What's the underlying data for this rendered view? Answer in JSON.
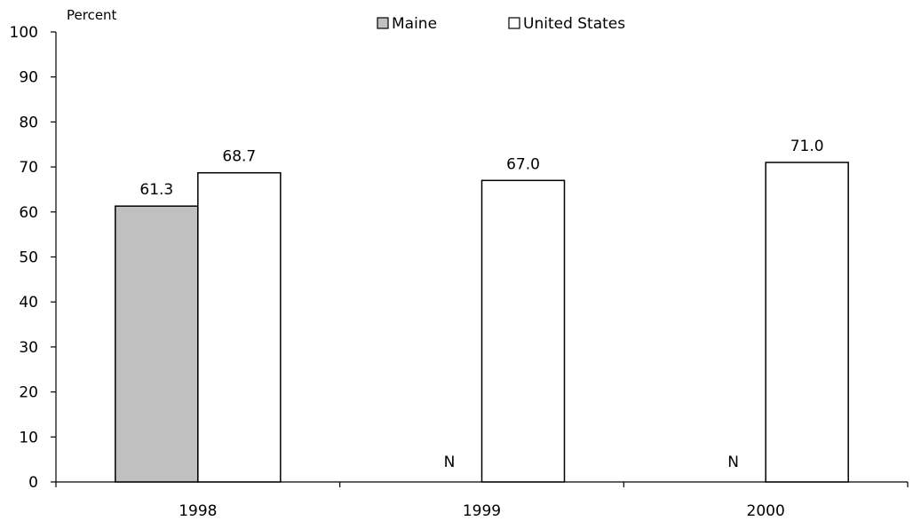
{
  "chart_data": {
    "type": "bar",
    "ylabel": "Percent",
    "ylim": [
      0,
      100
    ],
    "yticks": [
      0,
      10,
      20,
      30,
      40,
      50,
      60,
      70,
      80,
      90,
      100
    ],
    "categories": [
      "1998",
      "1999",
      "2000"
    ],
    "series": [
      {
        "name": "Maine",
        "color": "#c0c0c0",
        "values": [
          61.3,
          null,
          null
        ],
        "labels": [
          "61.3",
          "N",
          "N"
        ]
      },
      {
        "name": "United States",
        "color": "#ffffff",
        "values": [
          68.7,
          67.0,
          71.0
        ],
        "labels": [
          "68.7",
          "67.0",
          "71.0"
        ]
      }
    ],
    "legend": "top-center",
    "grid": false
  }
}
